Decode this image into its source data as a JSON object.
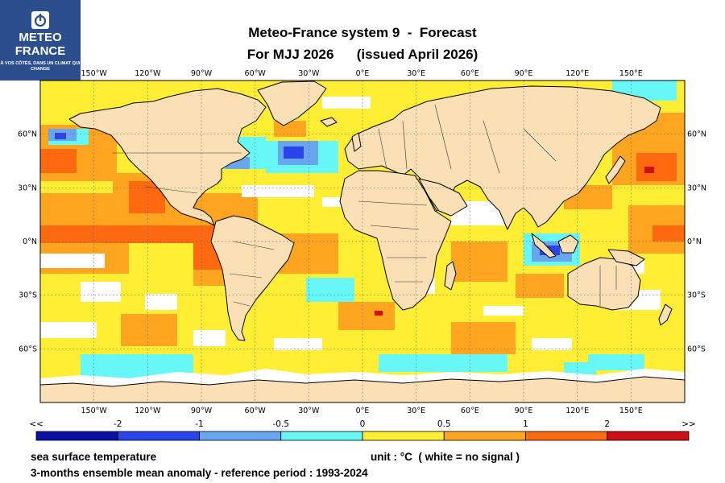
{
  "logo": {
    "line1": "METEO",
    "line2": "FRANCE",
    "tagline": "À VOS CÔTÉS, DANS UN CLIMAT QUI CHANGE",
    "color": "#2a4f8c"
  },
  "title": {
    "line1": "Meteo-France system 9  -  Forecast",
    "line2": "For MJJ 2026      (issued April 2026)"
  },
  "map": {
    "projection": "equirectangular",
    "lon_range": [
      -180,
      180
    ],
    "lat_range": [
      -90,
      90
    ],
    "x_ticks": [
      "150°W",
      "120°W",
      "90°W",
      "60°W",
      "30°W",
      "0°E",
      "30°E",
      "60°E",
      "90°E",
      "120°E",
      "150°E"
    ],
    "y_ticks": [
      "60°N",
      "30°N",
      "0°N",
      "30°S",
      "60°S"
    ],
    "land_color": "#fbe0b5",
    "ocean_base_color": "#ffee33",
    "grid": "dotted"
  },
  "colorbar": {
    "labels": [
      "<<",
      "-2",
      "-1",
      "-0.5",
      "0",
      "0.5",
      "1",
      "2",
      ">>"
    ],
    "colors": [
      "#0a12a6",
      "#2b43eb",
      "#69a6f0",
      "#68f7f7",
      "#ffee33",
      "#ffa51f",
      "#ff6a10",
      "#ce0f17"
    ]
  },
  "footer": {
    "variable": "sea surface temperature",
    "unit": "unit : °C  ( white = no signal )",
    "description": "3-months ensemble mean anomaly - reference period : 1993-2024"
  }
}
